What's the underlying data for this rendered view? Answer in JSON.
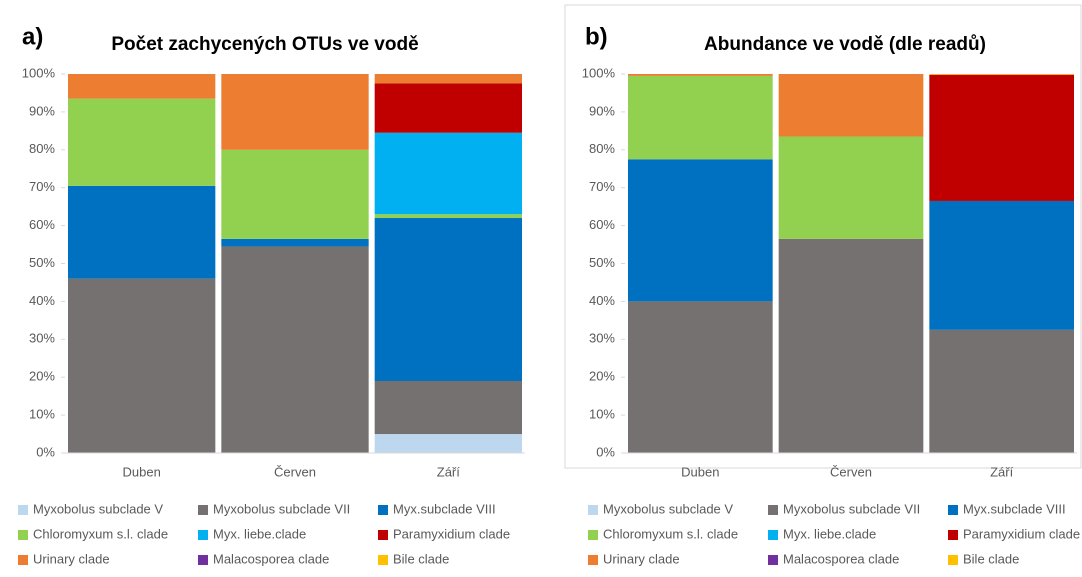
{
  "chart_data": [
    {
      "type": "stacked_bar",
      "panel_label": "a)",
      "title": "Počet zachycených OTUs ve vodě",
      "categories": [
        "Duben",
        "Červen",
        "Září"
      ],
      "ylim": [
        0,
        100
      ],
      "yticks": [
        {
          "value": 0,
          "label": "0%"
        },
        {
          "value": 10,
          "label": "10%"
        },
        {
          "value": 20,
          "label": "20%"
        },
        {
          "value": 30,
          "label": "30%"
        },
        {
          "value": 40,
          "label": "40%"
        },
        {
          "value": 50,
          "label": "50%"
        },
        {
          "value": 60,
          "label": "60%"
        },
        {
          "value": 70,
          "label": "70%"
        },
        {
          "value": 80,
          "label": "80%"
        },
        {
          "value": 90,
          "label": "90%"
        },
        {
          "value": 100,
          "label": "100%"
        }
      ],
      "series": [
        {
          "name": "Myxobolus subclade V",
          "color": "#bdd7ee",
          "values": [
            0,
            0,
            5
          ]
        },
        {
          "name": "Myxobolus subclade VII",
          "color": "#767171",
          "values": [
            46,
            54.5,
            14
          ]
        },
        {
          "name": "Myx.subclade VIII",
          "color": "#0070c0",
          "values": [
            24.5,
            2,
            43
          ]
        },
        {
          "name": "Chloromyxum s.l. clade",
          "color": "#92d050",
          "values": [
            23,
            23.5,
            1
          ]
        },
        {
          "name": "Myx. liebe.clade",
          "color": "#00b0f0",
          "values": [
            0,
            0,
            21.5
          ]
        },
        {
          "name": "Paramyxidium clade",
          "color": "#c00000",
          "values": [
            0,
            0,
            13
          ]
        },
        {
          "name": "Urinary clade",
          "color": "#ed7d31",
          "values": [
            6.5,
            20,
            2.5
          ]
        },
        {
          "name": "Malacosporea clade",
          "color": "#7030a0",
          "values": [
            0,
            0,
            0
          ]
        },
        {
          "name": "Bile clade",
          "color": "#ffc000",
          "values": [
            0,
            0,
            0
          ]
        }
      ]
    },
    {
      "type": "stacked_bar",
      "panel_label": "b)",
      "title": "Abundance ve vodě (dle readů)",
      "categories": [
        "Duben",
        "Červen",
        "Září"
      ],
      "ylim": [
        0,
        100
      ],
      "yticks": [
        {
          "value": 0,
          "label": "0%"
        },
        {
          "value": 10,
          "label": "10%"
        },
        {
          "value": 20,
          "label": "20%"
        },
        {
          "value": 30,
          "label": "30%"
        },
        {
          "value": 40,
          "label": "40%"
        },
        {
          "value": 50,
          "label": "50%"
        },
        {
          "value": 60,
          "label": "60%"
        },
        {
          "value": 70,
          "label": "70%"
        },
        {
          "value": 80,
          "label": "80%"
        },
        {
          "value": 90,
          "label": "90%"
        },
        {
          "value": 100,
          "label": "100%"
        }
      ],
      "series": [
        {
          "name": "Myxobolus subclade V",
          "color": "#bdd7ee",
          "values": [
            0,
            0,
            0
          ]
        },
        {
          "name": "Myxobolus subclade VII",
          "color": "#767171",
          "values": [
            40,
            56.5,
            32.5
          ]
        },
        {
          "name": "Myx.subclade VIII",
          "color": "#0070c0",
          "values": [
            37.5,
            0,
            34
          ]
        },
        {
          "name": "Chloromyxum s.l. clade",
          "color": "#92d050",
          "values": [
            22,
            27,
            0
          ]
        },
        {
          "name": "Myx. liebe.clade",
          "color": "#00b0f0",
          "values": [
            0,
            0,
            0
          ]
        },
        {
          "name": "Paramyxidium clade",
          "color": "#c00000",
          "values": [
            0,
            0,
            33.3
          ]
        },
        {
          "name": "Urinary clade",
          "color": "#ed7d31",
          "values": [
            0.5,
            16.5,
            0
          ]
        },
        {
          "name": "Malacosporea clade",
          "color": "#7030a0",
          "values": [
            0,
            0,
            0
          ]
        },
        {
          "name": "Bile clade",
          "color": "#ffc000",
          "values": [
            0,
            0,
            0.2
          ]
        }
      ]
    }
  ]
}
